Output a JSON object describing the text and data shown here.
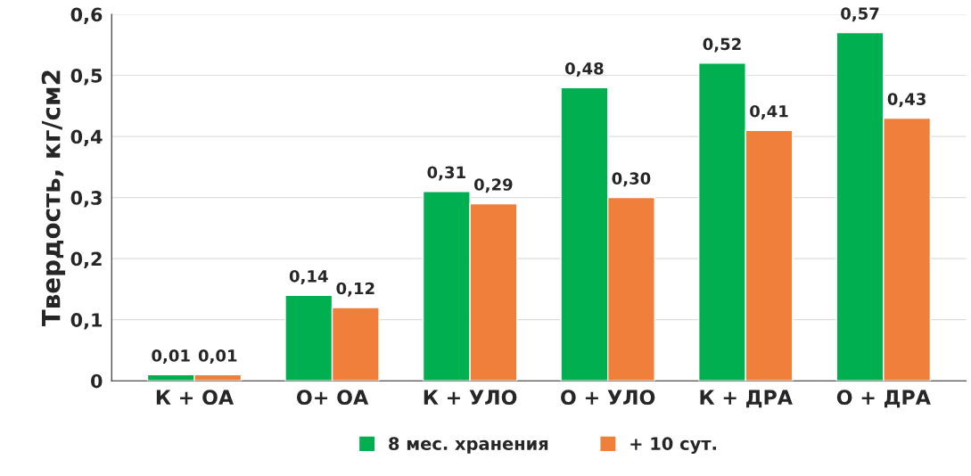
{
  "chart_data": {
    "type": "bar",
    "ylabel": "Твердость, кг/см2",
    "categories": [
      "К + ОА",
      "О+ ОА",
      "К + УЛО",
      "О + УЛО",
      "К + ДРА",
      "О + ДРА"
    ],
    "series": [
      {
        "name": "8 мес. хранения",
        "color": "#00b050",
        "values": [
          0.01,
          0.14,
          0.31,
          0.48,
          0.52,
          0.57
        ],
        "value_labels": [
          "0,01",
          "0,14",
          "0,31",
          "0,48",
          "0,52",
          "0,57"
        ]
      },
      {
        "name": "+ 10 сут.",
        "color": "#f07f3c",
        "values": [
          0.01,
          0.12,
          0.29,
          0.3,
          0.41,
          0.43
        ],
        "value_labels": [
          "0,01",
          "0,12",
          "0,29",
          "0,30",
          "0,41",
          "0,43"
        ]
      }
    ],
    "ylim": [
      0,
      0.6
    ],
    "yticks": [
      0,
      {
        "value": 0.1,
        "label": "0,1"
      },
      {
        "value": 0.2,
        "label": "0,2"
      },
      {
        "value": 0.3,
        "label": "0,3"
      },
      {
        "value": 0.4,
        "label": "0,4"
      },
      {
        "value": 0.5,
        "label": "0,5"
      },
      {
        "value": 0.6,
        "label": "0,6"
      }
    ],
    "grid": "y",
    "legend": "bottom"
  }
}
